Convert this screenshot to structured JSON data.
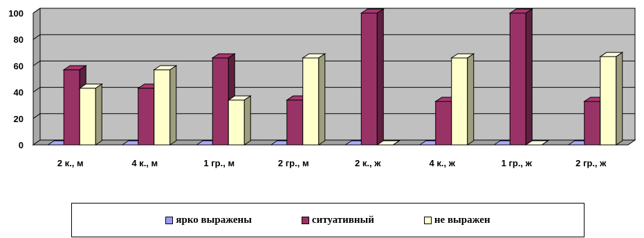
{
  "chart_data": {
    "type": "bar",
    "categories": [
      "2 к., м",
      "4 к., м",
      "1 гр., м",
      "2 гр., м",
      "2 к., ж",
      "4 к., ж",
      "1 гр., ж",
      "2 гр., ж"
    ],
    "series": [
      {
        "name": "ярко выражены",
        "color": "#9999FF",
        "values": [
          0,
          0,
          0,
          0,
          0,
          0,
          0,
          0
        ]
      },
      {
        "name": "ситуативный",
        "color": "#993366",
        "values": [
          57,
          43,
          66,
          34,
          100,
          33,
          100,
          33
        ]
      },
      {
        "name": "не выражен",
        "color": "#FFFFCC",
        "values": [
          43,
          57,
          34,
          66,
          0,
          66,
          0,
          67
        ]
      }
    ],
    "y_ticks": [
      "0",
      "20",
      "40",
      "60",
      "80",
      "100"
    ],
    "ylim": [
      0,
      100
    ],
    "grid": true,
    "style": "3d-bar",
    "wall_color": "#C0C0C0",
    "legend_position": "bottom"
  }
}
